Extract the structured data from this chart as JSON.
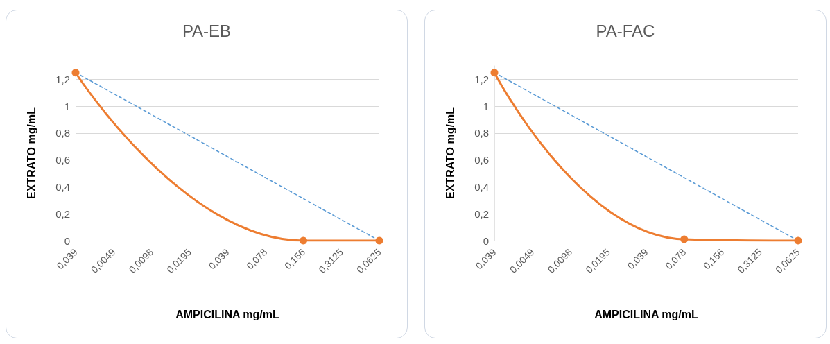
{
  "chart_data": [
    {
      "type": "line",
      "title": "PA-EB",
      "xlabel": "AMPICILINA mg/mL",
      "ylabel": "EXTRATO mg/mL",
      "categories": [
        "0,039",
        "0,0049",
        "0,0098",
        "0,0195",
        "0,039",
        "0,078",
        "0,156",
        "0,3125",
        "0,0625"
      ],
      "series": [
        {
          "color": "#5b9bd5",
          "line_style": "dashed",
          "marker": "none",
          "values": [
            1.25,
            null,
            null,
            null,
            null,
            null,
            null,
            null,
            0
          ]
        },
        {
          "color": "#ed7d31",
          "line_style": "solid",
          "marker": "circle",
          "values": [
            1.25,
            null,
            null,
            null,
            null,
            null,
            0,
            null,
            0
          ]
        }
      ],
      "ylim": [
        0,
        1.3
      ],
      "yticks": [
        {
          "value": 0,
          "label": "0"
        },
        {
          "value": 0.2,
          "label": "0,2"
        },
        {
          "value": 0.4,
          "label": "0,4"
        },
        {
          "value": 0.6,
          "label": "0,6"
        },
        {
          "value": 0.8,
          "label": "0,8"
        },
        {
          "value": 1,
          "label": "1"
        },
        {
          "value": 1.2,
          "label": "1,2"
        }
      ],
      "grid": "y"
    },
    {
      "type": "line",
      "title": "PA-FAC",
      "xlabel": "AMPICILINA mg/mL",
      "ylabel": "EXTRATO mg/mL",
      "categories": [
        "0,039",
        "0,0049",
        "0,0098",
        "0,0195",
        "0,039",
        "0,078",
        "0,156",
        "0,3125",
        "0,0625"
      ],
      "series": [
        {
          "color": "#5b9bd5",
          "line_style": "dashed",
          "marker": "none",
          "values": [
            1.25,
            null,
            null,
            null,
            null,
            null,
            null,
            null,
            0
          ]
        },
        {
          "color": "#ed7d31",
          "line_style": "solid",
          "marker": "circle",
          "values": [
            1.25,
            null,
            null,
            null,
            null,
            0.01,
            null,
            null,
            0
          ]
        }
      ],
      "ylim": [
        0,
        1.3
      ],
      "yticks": [
        {
          "value": 0,
          "label": "0"
        },
        {
          "value": 0.2,
          "label": "0,2"
        },
        {
          "value": 0.4,
          "label": "0,4"
        },
        {
          "value": 0.6,
          "label": "0,6"
        },
        {
          "value": 0.8,
          "label": "0,8"
        },
        {
          "value": 1,
          "label": "1"
        },
        {
          "value": 1.2,
          "label": "1,2"
        }
      ],
      "grid": "y"
    }
  ]
}
